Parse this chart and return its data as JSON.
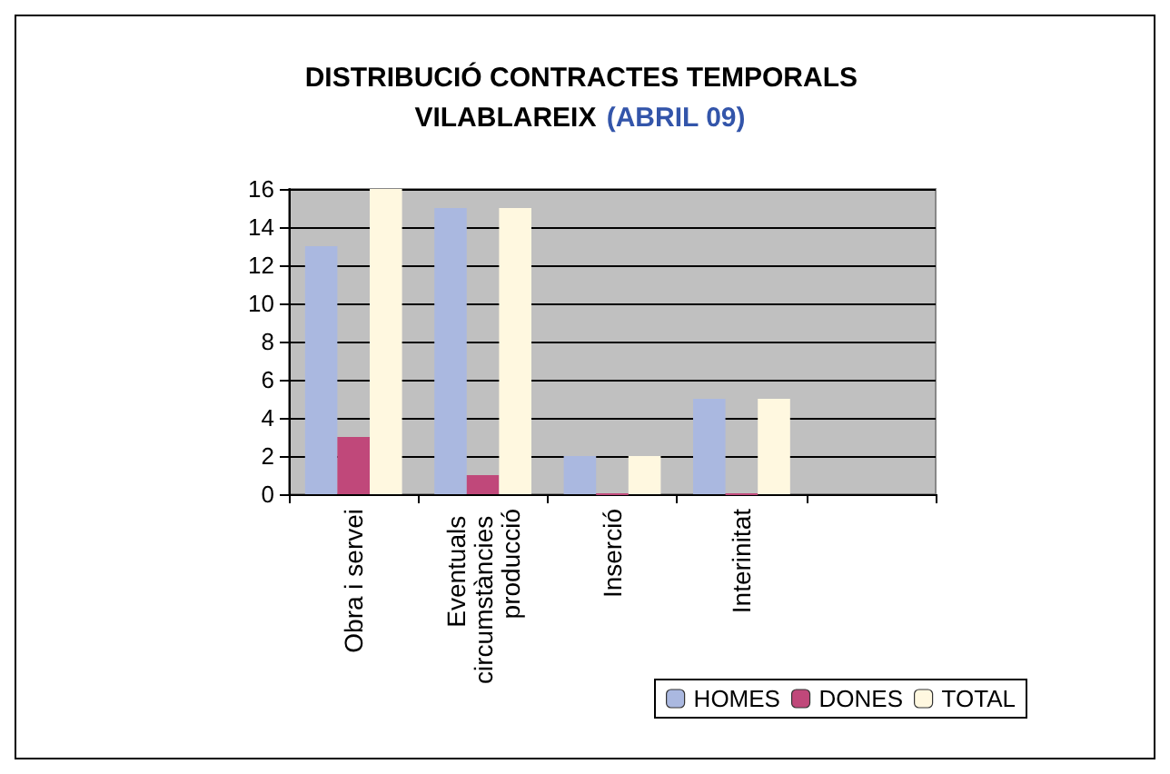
{
  "chart_data": {
    "type": "bar",
    "title": "DISTRIBUCIÓ CONTRACTES TEMPORALS VILABLAREIX",
    "subtitle": "(ABRIL 09)",
    "categories": [
      "Obra i servei",
      "Eventuals circumstàncies producció",
      "Inserció",
      "Interinitat",
      null
    ],
    "series": [
      {
        "name": "HOMES",
        "color": "#aab8e0",
        "values": [
          13,
          15,
          2,
          5,
          null
        ]
      },
      {
        "name": "DONES",
        "color": "#c0487a",
        "values": [
          3,
          1,
          0,
          0,
          null
        ]
      },
      {
        "name": "TOTAL",
        "color": "#fff8e0",
        "values": [
          16,
          15,
          2,
          5,
          null
        ]
      }
    ],
    "ylim": [
      0,
      16
    ],
    "yticks": [
      0,
      2,
      4,
      6,
      8,
      10,
      12,
      14,
      16
    ],
    "grid": "y",
    "legend": "bottom right"
  }
}
